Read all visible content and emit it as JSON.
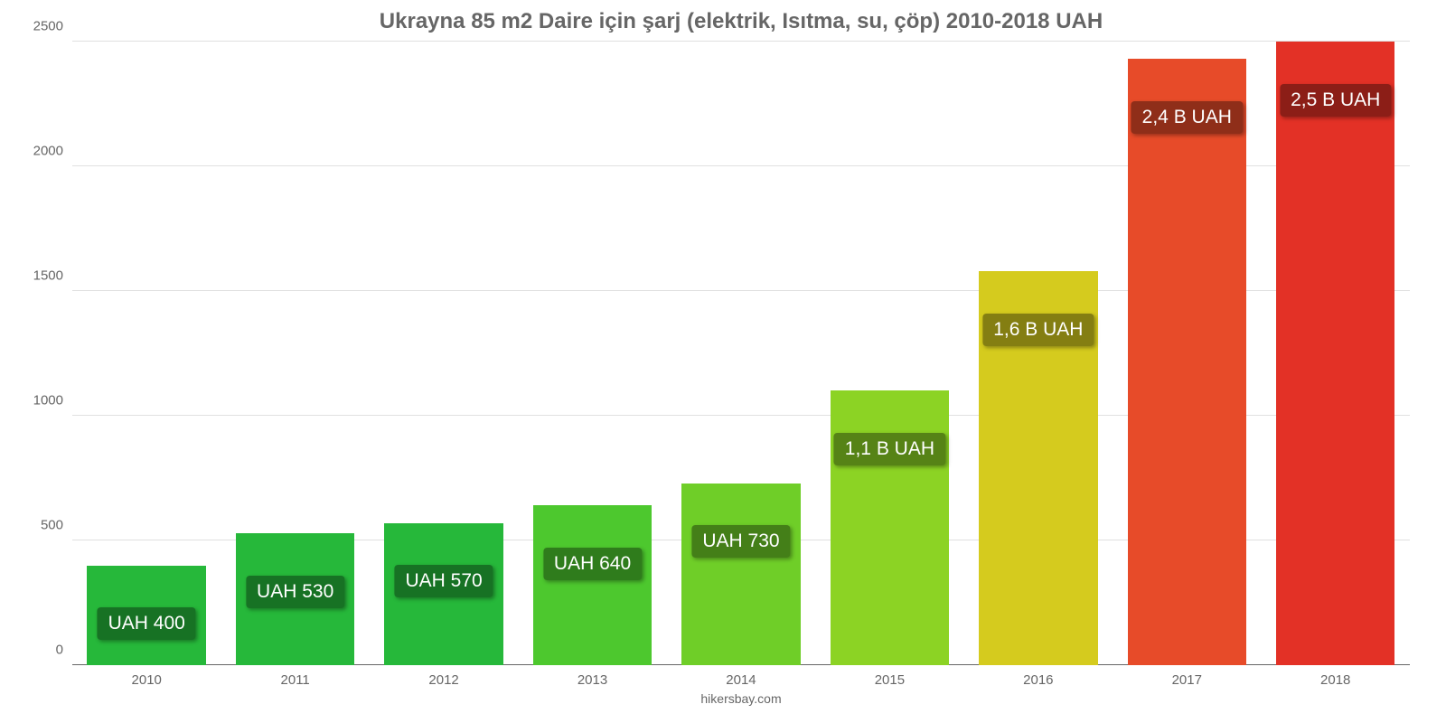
{
  "chart": {
    "type": "bar",
    "title": "Ukrayna 85 m2 Daire için şarj (elektrik, Isıtma, su, çöp) 2010-2018 UAH",
    "title_fontsize": 24,
    "title_color": "#666666",
    "background_color": "#ffffff",
    "grid_color": "#e0e0e0",
    "baseline_color": "#666666",
    "text_color": "#666666",
    "tick_fontsize": 15,
    "yaxis": {
      "min": 0,
      "max": 2500,
      "ticks": [
        0,
        500,
        1000,
        1500,
        2000,
        2500
      ]
    },
    "bar_width_pct": 80,
    "categories": [
      "2010",
      "2011",
      "2012",
      "2013",
      "2014",
      "2015",
      "2016",
      "2017",
      "2018"
    ],
    "values": [
      400,
      530,
      570,
      640,
      730,
      1100,
      1580,
      2430,
      2500
    ],
    "bar_colors": [
      "#26b83a",
      "#26b83a",
      "#26b83a",
      "#4dc82e",
      "#6fce28",
      "#8cd324",
      "#d5cb1e",
      "#e74b29",
      "#e33126"
    ],
    "value_labels": [
      "UAH 400",
      "UAH 530",
      "UAH 570",
      "UAH 640",
      "UAH 730",
      "1,1 B UAH",
      "1,6 B UAH",
      "2,4 B UAH",
      "2,5 B UAH"
    ],
    "value_label_fontsize": 21,
    "value_label_text_color": "#ffffff",
    "badge_bg_prefix": "rgba(0,0,0,0.38)",
    "footer": "hikersbay.com",
    "footer_fontsize": 14
  }
}
